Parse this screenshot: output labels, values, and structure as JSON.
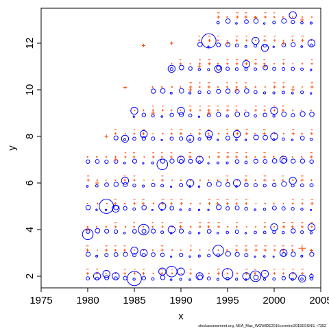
{
  "chart_data": {
    "type": "scatter",
    "title": "",
    "xlabel": "x",
    "ylabel": "y",
    "xlim": [
      1975,
      2005
    ],
    "ylim": [
      1.5,
      13.5
    ],
    "xticks": [
      "1975",
      "1980",
      "1985",
      "1990",
      "1995",
      "2000",
      "2005"
    ],
    "yticks": [
      "2",
      "4",
      "6",
      "8",
      "10",
      "12"
    ],
    "grid": false,
    "legend": "none",
    "footnote": "stockassessment.org, NEA_Mac_WGWIDE2015corretno2015ESSNS, r7352",
    "series": [
      {
        "name": "",
        "color": "#0000ff",
        "marker": "circle",
        "points": [
          {
            "x": 1980,
            "y": 3.8,
            "size": 3
          },
          {
            "x": 1981,
            "y": 2.0,
            "size": 2
          },
          {
            "x": 1982,
            "y": 5.0,
            "size": 4
          },
          {
            "x": 1982,
            "y": 2.1,
            "size": 2
          },
          {
            "x": 1983,
            "y": 4.9,
            "size": 2
          },
          {
            "x": 1983,
            "y": 2.0,
            "size": 2
          },
          {
            "x": 1984,
            "y": 7.9,
            "size": 2
          },
          {
            "x": 1984,
            "y": 6.1,
            "size": 2
          },
          {
            "x": 1985,
            "y": 9.1,
            "size": 2
          },
          {
            "x": 1985,
            "y": 3.1,
            "size": 2
          },
          {
            "x": 1985,
            "y": 1.9,
            "size": 4
          },
          {
            "x": 1986,
            "y": 8.1,
            "size": 2
          },
          {
            "x": 1986,
            "y": 4.0,
            "size": 3
          },
          {
            "x": 1986,
            "y": 3.0,
            "size": 2
          },
          {
            "x": 1988,
            "y": 6.8,
            "size": 3
          },
          {
            "x": 1988,
            "y": 5.0,
            "size": 2
          },
          {
            "x": 1988,
            "y": 2.2,
            "size": 2
          },
          {
            "x": 1989,
            "y": 10.9,
            "size": 2
          },
          {
            "x": 1989,
            "y": 4.0,
            "size": 2
          },
          {
            "x": 1989,
            "y": 2.2,
            "size": 3
          },
          {
            "x": 1990,
            "y": 9.1,
            "size": 2
          },
          {
            "x": 1990,
            "y": 7.0,
            "size": 2
          },
          {
            "x": 1990,
            "y": 2.2,
            "size": 2
          },
          {
            "x": 1991,
            "y": 7.9,
            "size": 2
          },
          {
            "x": 1991,
            "y": 6.0,
            "size": 2
          },
          {
            "x": 1992,
            "y": 7.0,
            "size": 2
          },
          {
            "x": 1992,
            "y": 2.0,
            "size": 2
          },
          {
            "x": 1993,
            "y": 12.1,
            "size": 4
          },
          {
            "x": 1993,
            "y": 8.1,
            "size": 2
          },
          {
            "x": 1994,
            "y": 10.9,
            "size": 2
          },
          {
            "x": 1994,
            "y": 3.1,
            "size": 3
          },
          {
            "x": 1995,
            "y": 2.1,
            "size": 3
          },
          {
            "x": 1996,
            "y": 8.1,
            "size": 2
          },
          {
            "x": 1996,
            "y": 6.0,
            "size": 2
          },
          {
            "x": 1997,
            "y": 11.1,
            "size": 2
          },
          {
            "x": 1997,
            "y": 2.0,
            "size": 2
          },
          {
            "x": 1998,
            "y": 12.1,
            "size": 2
          },
          {
            "x": 1998,
            "y": 2.0,
            "size": 3
          },
          {
            "x": 1999,
            "y": 11.8,
            "size": 2
          },
          {
            "x": 1999,
            "y": 2.1,
            "size": 2
          },
          {
            "x": 2000,
            "y": 9.1,
            "size": 2
          },
          {
            "x": 2000,
            "y": 8.0,
            "size": 2
          },
          {
            "x": 2000,
            "y": 4.1,
            "size": 2
          },
          {
            "x": 2001,
            "y": 7.0,
            "size": 2
          },
          {
            "x": 2001,
            "y": 3.0,
            "size": 2
          },
          {
            "x": 2002,
            "y": 13.2,
            "size": 2
          },
          {
            "x": 2002,
            "y": 6.1,
            "size": 2
          },
          {
            "x": 2002,
            "y": 2.0,
            "size": 2
          },
          {
            "x": 2003,
            "y": 1.9,
            "size": 2
          },
          {
            "x": 2004,
            "y": 12.0,
            "size": 2
          },
          {
            "x": 2004,
            "y": 4.1,
            "size": 2
          },
          {
            "x": 2004,
            "y": 2.0,
            "size": 1
          }
        ]
      },
      {
        "name": "",
        "color": "#ff4500",
        "marker": "plus",
        "points": [
          {
            "x": 1980,
            "y": 4.0,
            "size": 1
          },
          {
            "x": 1981,
            "y": 6.0,
            "size": 1
          },
          {
            "x": 1982,
            "y": 8.0,
            "size": 1
          },
          {
            "x": 1983,
            "y": 7.0,
            "size": 1
          },
          {
            "x": 1984,
            "y": 10.1,
            "size": 1
          },
          {
            "x": 1986,
            "y": 11.9,
            "size": 1
          },
          {
            "x": 1987,
            "y": 9.0,
            "size": 1
          },
          {
            "x": 1989,
            "y": 12.0,
            "size": 1
          },
          {
            "x": 1991,
            "y": 10.0,
            "size": 1
          },
          {
            "x": 1992,
            "y": 11.0,
            "size": 1
          },
          {
            "x": 1993,
            "y": 9.0,
            "size": 1
          },
          {
            "x": 1995,
            "y": 12.0,
            "size": 1
          },
          {
            "x": 1996,
            "y": 10.0,
            "size": 1
          },
          {
            "x": 1998,
            "y": 13.1,
            "size": 1
          },
          {
            "x": 1999,
            "y": 11.0,
            "size": 1
          },
          {
            "x": 2001,
            "y": 12.0,
            "size": 1
          },
          {
            "x": 2002,
            "y": 10.0,
            "size": 1
          },
          {
            "x": 2003,
            "y": 3.2,
            "size": 2
          },
          {
            "x": 2004,
            "y": 3.1,
            "size": 1
          },
          {
            "x": 2003,
            "y": 13.0,
            "size": 1
          }
        ]
      }
    ],
    "series_note": ""
  }
}
